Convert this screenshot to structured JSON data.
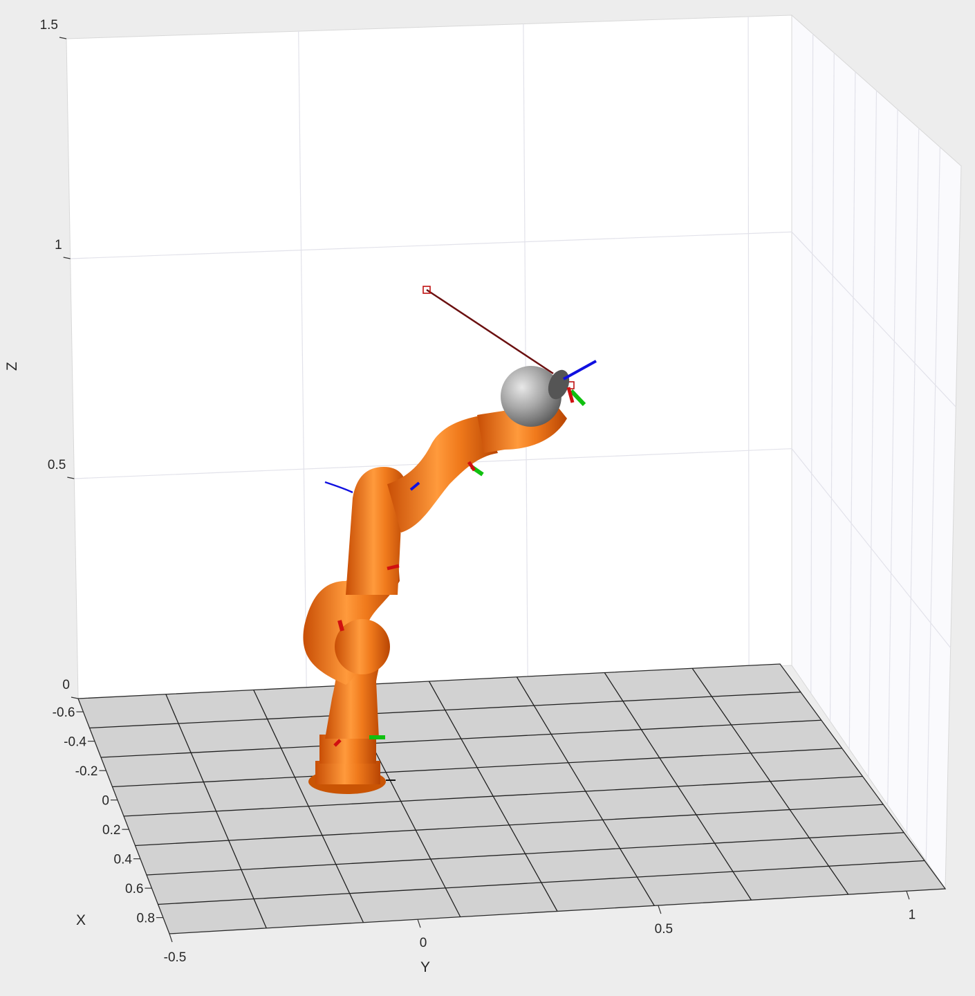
{
  "figure": {
    "type": "3d-robot-plot",
    "background_color": "#ededed",
    "floor_color": "#d2d2d2",
    "robot_color": "#e8650c",
    "end_effector_color": "#9a9a9a"
  },
  "axes": {
    "x": {
      "label": "X",
      "ticks": [
        "-0.6",
        "-0.4",
        "-0.2",
        "0",
        "0.2",
        "0.4",
        "0.6",
        "0.8"
      ]
    },
    "y": {
      "label": "Y",
      "ticks": [
        "-0.5",
        "0",
        "0.5",
        "1"
      ]
    },
    "z": {
      "label": "Z",
      "ticks": [
        "0",
        "0.5",
        "1",
        "1.5"
      ]
    },
    "grid": true
  }
}
